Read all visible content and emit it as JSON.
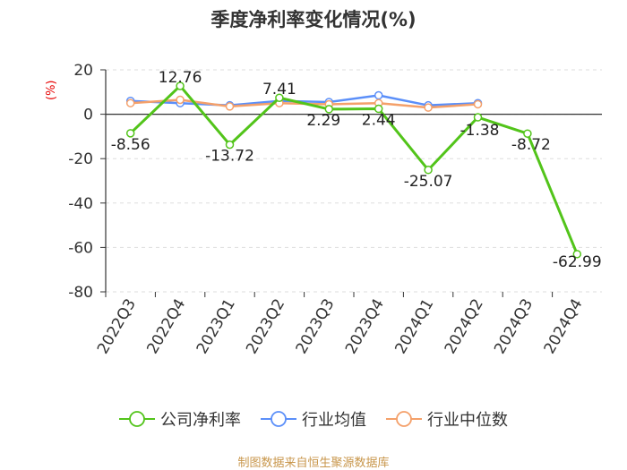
{
  "chart_data": {
    "type": "line",
    "title": "季度净利率变化情况(%)",
    "ylabel": "(%)",
    "xlabel": "",
    "categories": [
      "2022Q3",
      "2022Q4",
      "2023Q1",
      "2023Q2",
      "2023Q3",
      "2023Q4",
      "2024Q1",
      "2024Q2",
      "2024Q3",
      "2024Q4"
    ],
    "ylim": [
      -80,
      20
    ],
    "yticks": [
      20,
      0,
      -20,
      -40,
      -60,
      -80
    ],
    "grid": true,
    "legend_position": "bottom",
    "series": [
      {
        "name": "公司净利率",
        "color": "#52c41a",
        "values": [
          -8.56,
          12.76,
          -13.72,
          7.41,
          2.29,
          2.44,
          -25.07,
          -1.38,
          -8.72,
          -62.99
        ],
        "labels": [
          "-8.56",
          "12.76",
          "-13.72",
          "7.41",
          "2.29",
          "2.44",
          "-25.07",
          "-1.38",
          "-8.72",
          "-62.99"
        ]
      },
      {
        "name": "行业均值",
        "color": "#5b8ff9",
        "values": [
          6.0,
          5.0,
          4.0,
          6.0,
          5.5,
          8.5,
          4.0,
          5.0,
          null,
          null
        ]
      },
      {
        "name": "行业中位数",
        "color": "#f4a06a",
        "values": [
          5.0,
          6.5,
          3.5,
          5.0,
          4.5,
          5.0,
          3.0,
          4.5,
          null,
          null
        ]
      }
    ]
  },
  "source": "制图数据来自恒生聚源数据库"
}
